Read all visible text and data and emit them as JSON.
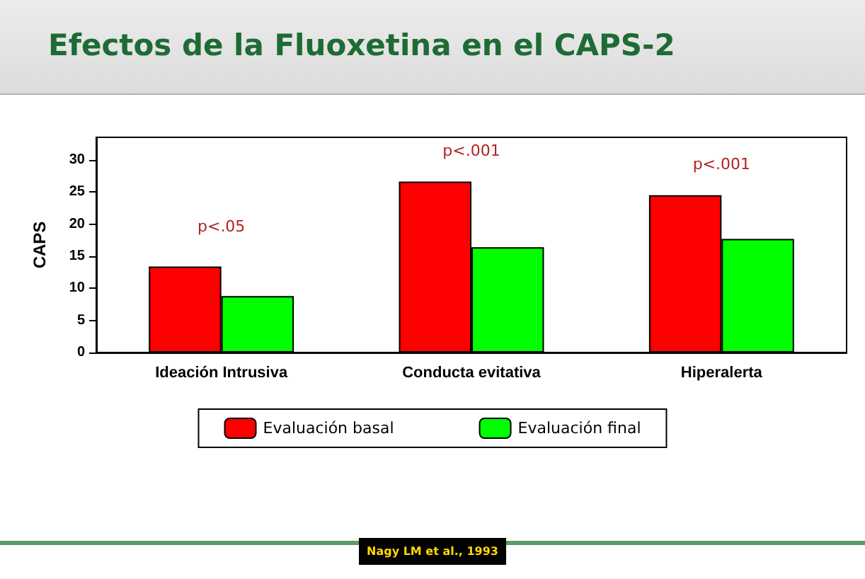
{
  "chart_data": {
    "type": "bar",
    "title": "Efectos de la Fluoxetina en el CAPS-2",
    "ylabel": "CAPS",
    "categories": [
      "Ideación Intrusiva",
      "Conducta evitativa",
      "Hiperalerta"
    ],
    "series": [
      {
        "name": "Evaluación basal",
        "color": "#ff0000",
        "values": [
          13.4,
          26.6,
          24.5
        ]
      },
      {
        "name": "Evaluación final",
        "color": "#00ff00",
        "values": [
          8.8,
          16.4,
          17.7
        ]
      }
    ],
    "ylim": [
      0,
      33.5
    ],
    "yticks": [
      0,
      5,
      10,
      15,
      20,
      25,
      30
    ],
    "grid": false,
    "legend": "bottom",
    "annotations": [
      "p<.05",
      "p<.001",
      "p<.001",
      "Nagy LM et al., 1993"
    ]
  }
}
